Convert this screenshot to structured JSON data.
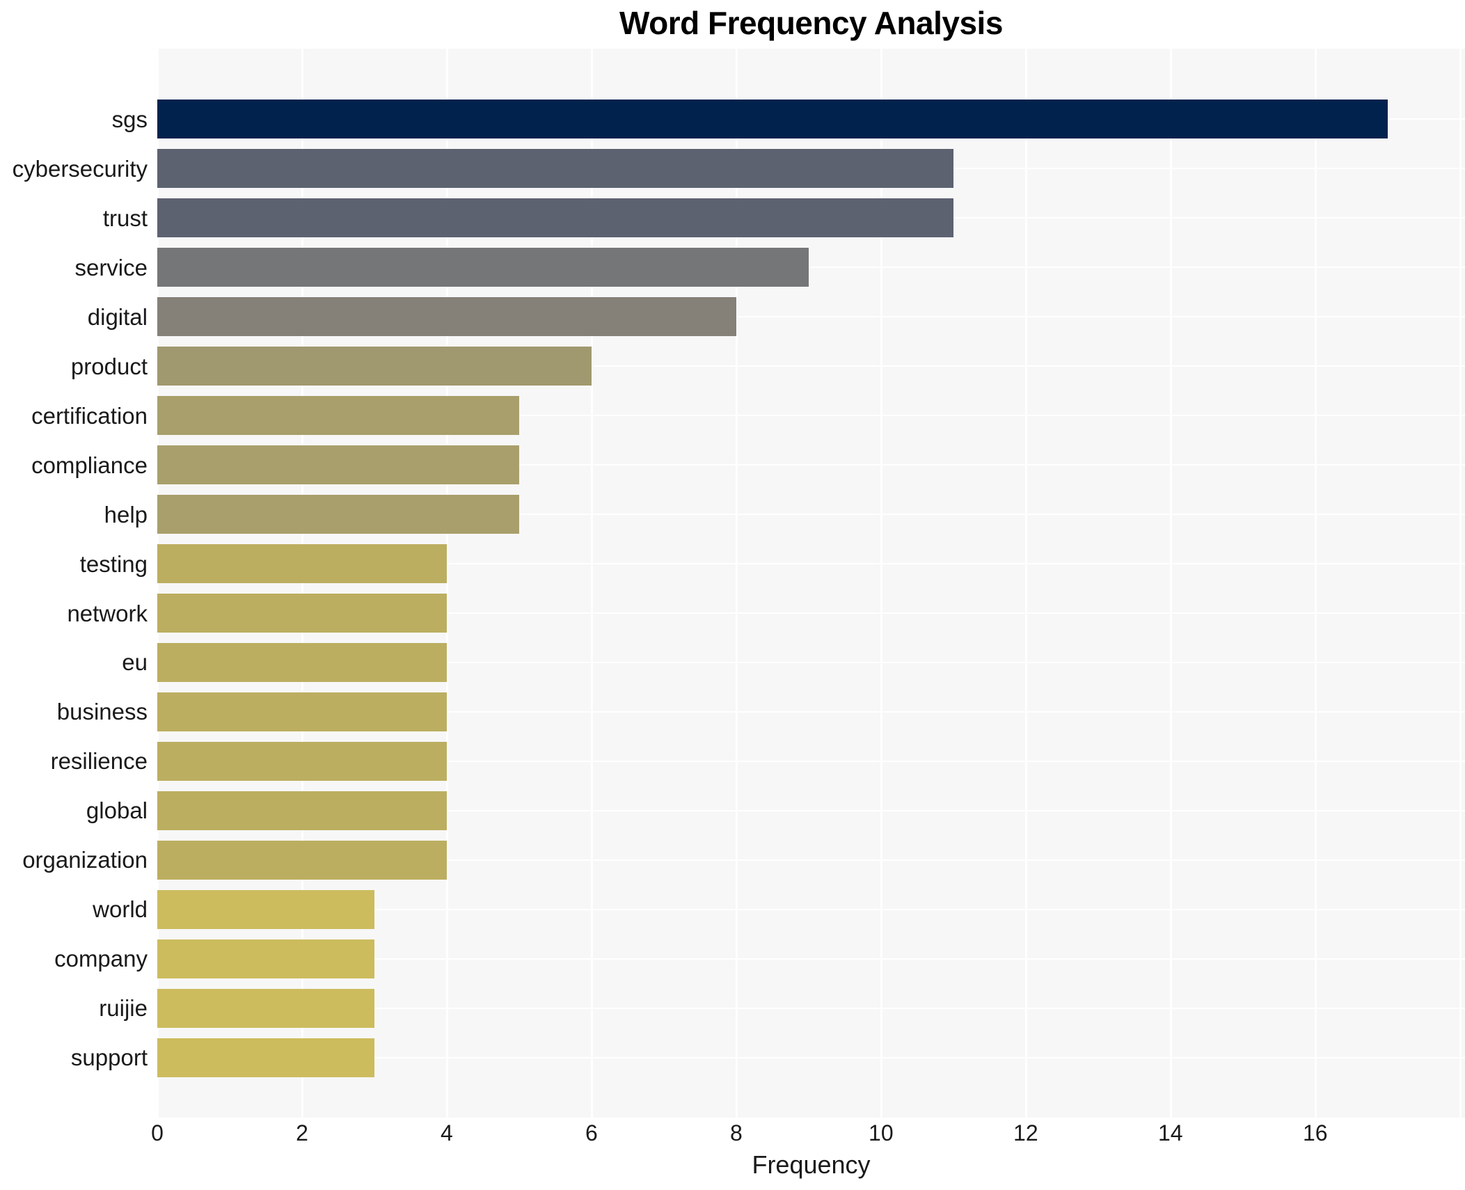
{
  "figure": {
    "title": "Word Frequency Analysis"
  },
  "chart_data": {
    "type": "bar",
    "orientation": "horizontal",
    "title": "Word Frequency Analysis",
    "xlabel": "Frequency",
    "ylabel": "",
    "categories": [
      "sgs",
      "cybersecurity",
      "trust",
      "service",
      "digital",
      "product",
      "certification",
      "compliance",
      "help",
      "testing",
      "network",
      "eu",
      "business",
      "resilience",
      "global",
      "organization",
      "world",
      "company",
      "ruijie",
      "support"
    ],
    "values": [
      17,
      11,
      11,
      9,
      8,
      6,
      5,
      5,
      5,
      4,
      4,
      4,
      4,
      4,
      4,
      4,
      3,
      3,
      3,
      3
    ],
    "bar_colors": [
      "#02224e",
      "#5c6270",
      "#5c6270",
      "#747678",
      "#858078",
      "#a0986f",
      "#a99f6c",
      "#a99f6c",
      "#a99f6c",
      "#bcae60",
      "#bcae60",
      "#bcae60",
      "#bcae60",
      "#bcae60",
      "#bcae60",
      "#bcae60",
      "#ccbc5e",
      "#ccbc5e",
      "#ccbc5e",
      "#ccbc5e"
    ],
    "xlim": [
      0,
      18.07
    ],
    "xticks": [
      0,
      2,
      4,
      6,
      8,
      10,
      12,
      14,
      16
    ],
    "grid": true,
    "grid_tick_step": 2,
    "legend": null,
    "plot_background": "#f7f7f8",
    "grid_color": "#ffffff",
    "text_color": "#1a1a1a"
  }
}
